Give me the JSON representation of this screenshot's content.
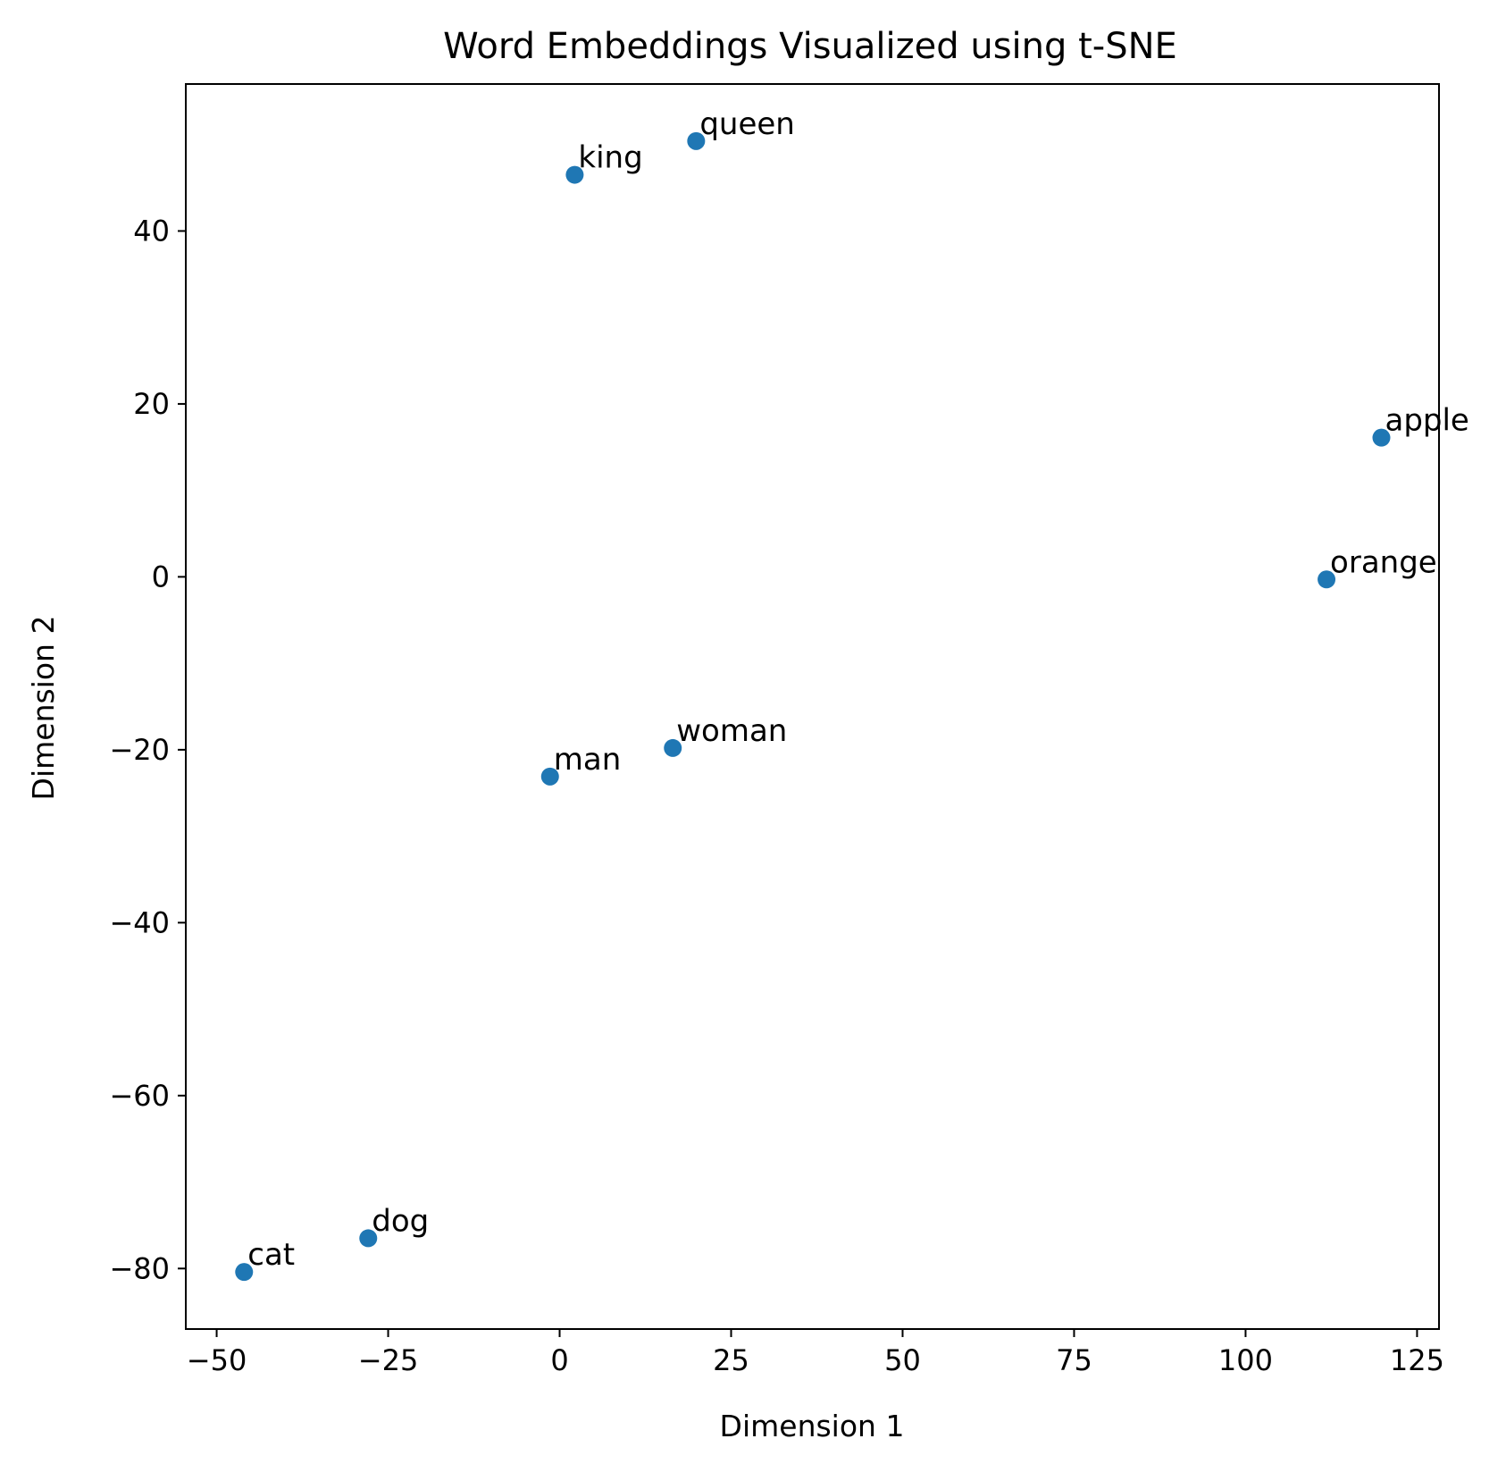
{
  "chart_data": {
    "type": "scatter",
    "title": "Word Embeddings Visualized using t-SNE",
    "xlabel": "Dimension 1",
    "ylabel": "Dimension 2",
    "xlim": [
      -54.5,
      128.2
    ],
    "ylim": [
      -87,
      57
    ],
    "xticks": [
      -50,
      -25,
      0,
      25,
      50,
      75,
      100,
      125
    ],
    "xtick_labels": [
      "−50",
      "−25",
      "0",
      "25",
      "50",
      "75",
      "100",
      "125"
    ],
    "yticks": [
      -80,
      -60,
      -40,
      -20,
      0,
      20,
      40
    ],
    "ytick_labels": [
      "−80",
      "−60",
      "−40",
      "−20",
      "0",
      "20",
      "40"
    ],
    "grid": false,
    "marker_color": "#1f77b4",
    "points": [
      {
        "label": "king",
        "x": 2.2,
        "y": 46.5
      },
      {
        "label": "queen",
        "x": 19.9,
        "y": 50.4
      },
      {
        "label": "apple",
        "x": 119.8,
        "y": 16.1
      },
      {
        "label": "orange",
        "x": 111.8,
        "y": -0.3
      },
      {
        "label": "woman",
        "x": 16.5,
        "y": -19.8
      },
      {
        "label": "man",
        "x": -1.4,
        "y": -23.1
      },
      {
        "label": "dog",
        "x": -27.9,
        "y": -76.5
      },
      {
        "label": "cat",
        "x": -46.0,
        "y": -80.4
      }
    ]
  }
}
